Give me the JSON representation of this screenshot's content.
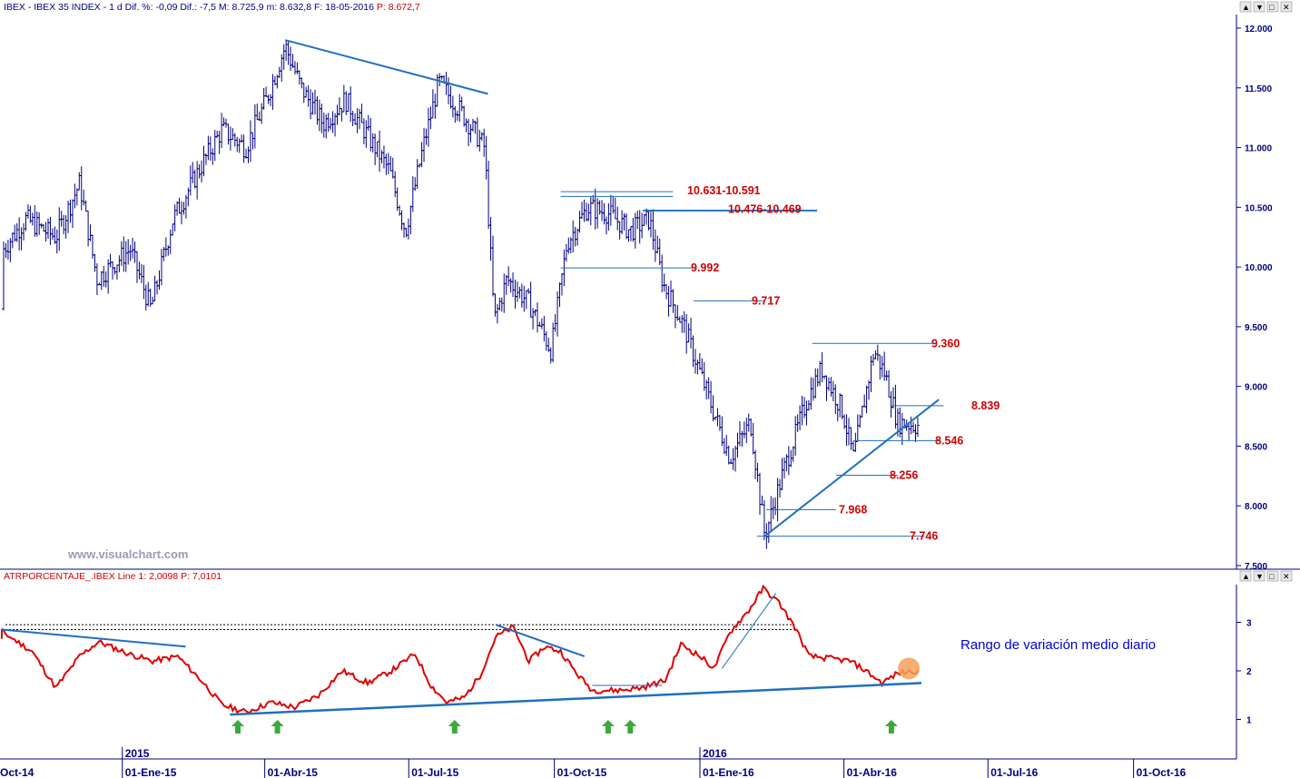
{
  "header": {
    "main_left": "IBEX - IBEX 35 INDEX - 1 d  Dif. %: -0,09  Dif.: -7,5  M: 8.725,9  m: 8.632,8  F: 18-05-2016 ",
    "main_right": "P: 8.672,7",
    "sub_left": "ATRPORCENTAJE_.IBEX  Line 1: 2,0098 ",
    "sub_right": "P: 7,0101"
  },
  "window_buttons": [
    "▲",
    "▼",
    "□",
    "✕"
  ],
  "watermark": "www.visualchart.com",
  "annotation": "Rango de variación medio diario",
  "colors": {
    "bars": "#000080",
    "trend": "#1f6fbf",
    "atr": "#e00000",
    "level_text": "#d00000",
    "marker": "#f5a05a",
    "arrow": "#3aaa3a",
    "header_blue": "#000080",
    "header_red": "#cc0000"
  },
  "chart_data": [
    {
      "type": "ohlc",
      "name": "IBEX 35 INDEX",
      "period": "1 d",
      "ylim": [
        7500,
        12000
      ],
      "y_ticks": [
        "12.000",
        "11.500",
        "11.000",
        "10.500",
        "10.000",
        "9.500",
        "9.000",
        "8.500",
        "8.000",
        "7.500"
      ],
      "x_ticks": [
        "Oct-14",
        "01-Ene-15",
        "01-Abr-15",
        "01-Jul-15",
        "01-Oct-15",
        "01-Ene-16",
        "01-Abr-16",
        "01-Jul-16",
        "01-Oct-16"
      ],
      "year_labels": [
        "2015",
        "2016"
      ],
      "close_path": [
        [
          "2014-10-01",
          9650
        ],
        [
          "2014-10-15",
          10100
        ],
        [
          "2014-11-01",
          10400
        ],
        [
          "2014-11-20",
          10250
        ],
        [
          "2014-12-05",
          10700
        ],
        [
          "2014-12-16",
          9900
        ],
        [
          "2015-01-06",
          10150
        ],
        [
          "2015-01-19",
          9650
        ],
        [
          "2015-02-02",
          10400
        ],
        [
          "2015-02-20",
          10850
        ],
        [
          "2015-03-05",
          11150
        ],
        [
          "2015-03-20",
          11000
        ],
        [
          "2015-04-02",
          11400
        ],
        [
          "2015-04-14",
          11850
        ],
        [
          "2015-04-24",
          11500
        ],
        [
          "2015-05-08",
          11200
        ],
        [
          "2015-05-22",
          11400
        ],
        [
          "2015-06-05",
          11100
        ],
        [
          "2015-06-19",
          10800
        ],
        [
          "2015-06-29",
          10300
        ],
        [
          "2015-07-10",
          11000
        ],
        [
          "2015-07-20",
          11550
        ],
        [
          "2015-08-03",
          11300
        ],
        [
          "2015-08-18",
          11000
        ],
        [
          "2015-08-24",
          9550
        ],
        [
          "2015-09-01",
          9900
        ],
        [
          "2015-09-15",
          9700
        ],
        [
          "2015-09-29",
          9300
        ],
        [
          "2015-10-09",
          10200
        ],
        [
          "2015-10-22",
          10500
        ],
        [
          "2015-11-04",
          10450
        ],
        [
          "2015-11-18",
          10300
        ],
        [
          "2015-11-30",
          10400
        ],
        [
          "2015-12-09",
          9850
        ],
        [
          "2015-12-22",
          9500
        ],
        [
          "2016-01-08",
          8850
        ],
        [
          "2016-01-20",
          8400
        ],
        [
          "2016-02-02",
          8700
        ],
        [
          "2016-02-11",
          7746
        ],
        [
          "2016-02-23",
          8300
        ],
        [
          "2016-03-09",
          8900
        ],
        [
          "2016-03-18",
          9150
        ],
        [
          "2016-03-31",
          8800
        ],
        [
          "2016-04-07",
          8400
        ],
        [
          "2016-04-20",
          9300
        ],
        [
          "2016-04-27",
          9100
        ],
        [
          "2016-05-05",
          8700
        ],
        [
          "2016-05-18",
          8672.7
        ]
      ],
      "levels": [
        {
          "label": "10.631-10.591",
          "values": [
            10631,
            10591
          ]
        },
        {
          "label": "10.476-10.469",
          "values": [
            10476,
            10469
          ]
        },
        {
          "label": "9.992",
          "values": [
            9992
          ]
        },
        {
          "label": "9.717",
          "values": [
            9717
          ]
        },
        {
          "label": "9.360",
          "values": [
            9360
          ]
        },
        {
          "label": "8.839",
          "values": [
            8839
          ]
        },
        {
          "label": "8.546",
          "values": [
            8546
          ]
        },
        {
          "label": "8.256",
          "values": [
            8256
          ]
        },
        {
          "label": "7.968",
          "values": [
            7968
          ]
        },
        {
          "label": "7.746",
          "values": [
            7746
          ]
        }
      ],
      "trendlines": [
        {
          "from": [
            "2015-04-14",
            11900
          ],
          "to": [
            "2015-08-20",
            11450
          ]
        },
        {
          "from": [
            "2016-02-11",
            7746
          ],
          "to": [
            "2016-05-31",
            8890
          ]
        }
      ]
    },
    {
      "type": "line",
      "name": "ATRPORCENTAJE_.IBEX",
      "ylim": [
        0.25,
        3.7
      ],
      "y_ticks": [
        "3",
        "2",
        "1"
      ],
      "last_value": 2.0098,
      "path": [
        [
          "2014-10-01",
          2.65
        ],
        [
          "2014-10-15",
          2.85
        ],
        [
          "2014-11-05",
          2.4
        ],
        [
          "2014-11-20",
          1.65
        ],
        [
          "2014-12-05",
          2.3
        ],
        [
          "2014-12-17",
          2.6
        ],
        [
          "2015-01-05",
          2.35
        ],
        [
          "2015-01-20",
          2.2
        ],
        [
          "2015-02-05",
          2.3
        ],
        [
          "2015-02-20",
          1.8
        ],
        [
          "2015-03-05",
          1.3
        ],
        [
          "2015-03-20",
          1.15
        ],
        [
          "2015-04-05",
          1.35
        ],
        [
          "2015-04-20",
          1.25
        ],
        [
          "2015-05-05",
          1.5
        ],
        [
          "2015-05-20",
          2.0
        ],
        [
          "2015-06-05",
          1.75
        ],
        [
          "2015-06-20",
          2.0
        ],
        [
          "2015-07-05",
          2.35
        ],
        [
          "2015-07-15",
          1.7
        ],
        [
          "2015-07-25",
          1.35
        ],
        [
          "2015-08-05",
          1.45
        ],
        [
          "2015-08-15",
          1.9
        ],
        [
          "2015-08-25",
          2.7
        ],
        [
          "2015-09-05",
          2.9
        ],
        [
          "2015-09-15",
          2.2
        ],
        [
          "2015-09-25",
          2.5
        ],
        [
          "2015-10-05",
          2.4
        ],
        [
          "2015-10-15",
          1.95
        ],
        [
          "2015-10-25",
          1.6
        ],
        [
          "2015-11-10",
          1.6
        ],
        [
          "2015-11-25",
          1.65
        ],
        [
          "2015-12-10",
          1.8
        ],
        [
          "2015-12-20",
          2.55
        ],
        [
          "2016-01-01",
          2.3
        ],
        [
          "2016-01-10",
          2.05
        ],
        [
          "2016-01-20",
          2.8
        ],
        [
          "2016-02-01",
          3.25
        ],
        [
          "2016-02-10",
          3.7
        ],
        [
          "2016-02-20",
          3.4
        ],
        [
          "2016-03-01",
          2.9
        ],
        [
          "2016-03-10",
          2.3
        ],
        [
          "2016-03-25",
          2.25
        ],
        [
          "2016-04-05",
          2.2
        ],
        [
          "2016-04-15",
          2.0
        ],
        [
          "2016-04-25",
          1.75
        ],
        [
          "2016-05-05",
          1.95
        ],
        [
          "2016-05-18",
          2.0098
        ]
      ],
      "support_line": {
        "from": [
          "2015-03-10",
          1.1
        ],
        "to": [
          "2016-05-20",
          1.75
        ]
      },
      "falling_lines": [
        {
          "from": [
            "2014-10-01",
            2.85
          ],
          "to": [
            "2015-02-10",
            2.5
          ]
        },
        {
          "from": [
            "2015-08-25",
            2.95
          ],
          "to": [
            "2015-10-20",
            2.3
          ]
        }
      ],
      "rising_line": {
        "from": [
          "2016-01-15",
          2.05
        ],
        "to": [
          "2016-02-18",
          3.6
        ]
      },
      "dotted_lines": [
        2.95,
        2.85
      ],
      "support_arrows": [
        "2015-03-15",
        "2015-04-09",
        "2015-07-30",
        "2015-11-04",
        "2015-11-18",
        "2016-05-01"
      ]
    }
  ]
}
